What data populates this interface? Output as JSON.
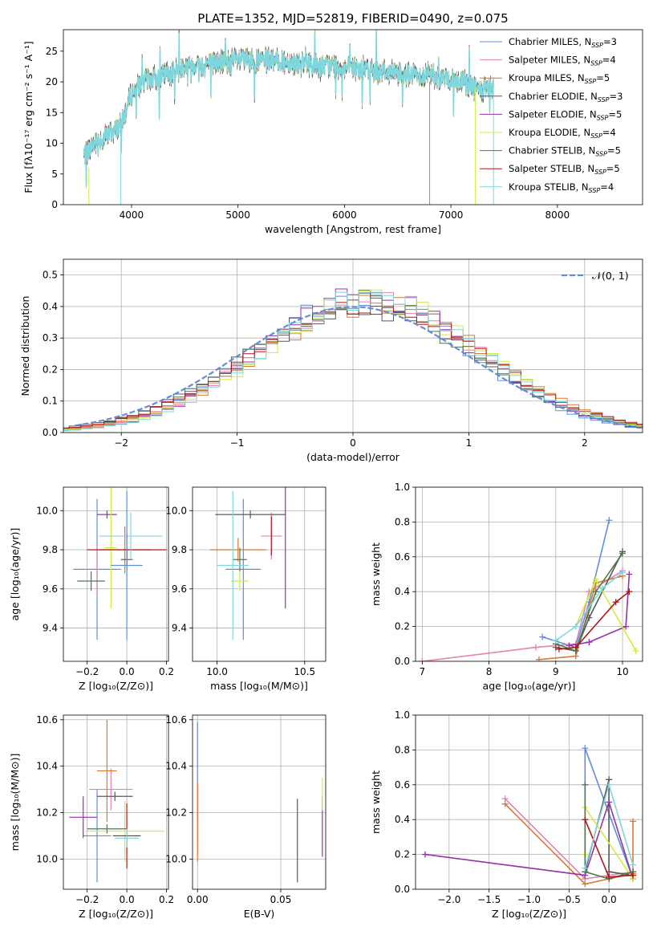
{
  "chart_data": [
    {
      "id": "spectrum",
      "type": "line",
      "title": "PLATE=1352, MJD=52819, FIBERID=0490, z=0.075",
      "xlabel": "wavelength [Angstrom, rest frame]",
      "ylabel": "Flux [fλ10⁻¹⁷ erg cm⁻² s⁻¹ A⁻¹]",
      "xlim": [
        3360,
        8800
      ],
      "ylim": [
        0,
        28.5
      ],
      "xticks": [
        4000,
        5000,
        6000,
        7000,
        8000
      ],
      "yticks": [
        0,
        5,
        10,
        15,
        20,
        25
      ],
      "continuum": [
        [
          3550,
          8
        ],
        [
          3650,
          10
        ],
        [
          3750,
          11
        ],
        [
          3900,
          13
        ],
        [
          4000,
          18
        ],
        [
          4100,
          20
        ],
        [
          4300,
          21
        ],
        [
          4500,
          22.5
        ],
        [
          4700,
          23
        ],
        [
          5000,
          23.5
        ],
        [
          5300,
          23.5
        ],
        [
          5600,
          23
        ],
        [
          5900,
          22.5
        ],
        [
          6200,
          22
        ],
        [
          6500,
          21.5
        ],
        [
          6800,
          21
        ],
        [
          7100,
          20
        ],
        [
          7300,
          18.5
        ],
        [
          7400,
          19
        ]
      ],
      "legend": [
        "Chabrier MILES, N_SSP=3",
        "Salpeter MILES, N_SSP=4",
        "Kroupa MILES, N_SSP=5",
        "Chabrier ELODIE, N_SSP=3",
        "Salpeter ELODIE, N_SSP=5",
        "Kroupa ELODIE, N_SSP=4",
        "Chabrier STELIB, N_SSP=5",
        "Salpeter STELIB, N_SSP=5",
        "Kroupa STELIB, N_SSP=4"
      ],
      "legend_labels": [
        {
          "pre": "Chabrier MILES, N",
          "sub": "SSP",
          "post": "=3"
        },
        {
          "pre": "Salpeter MILES, N",
          "sub": "SSP",
          "post": "=4"
        },
        {
          "pre": "Kroupa MILES, N",
          "sub": "SSP",
          "post": "=5"
        },
        {
          "pre": "Chabrier ELODIE, N",
          "sub": "SSP",
          "post": "=3"
        },
        {
          "pre": "Salpeter ELODIE, N",
          "sub": "SSP",
          "post": "=5"
        },
        {
          "pre": "Kroupa ELODIE, N",
          "sub": "SSP",
          "post": "=4"
        },
        {
          "pre": "Chabrier STELIB, N",
          "sub": "SSP",
          "post": "=5"
        },
        {
          "pre": "Salpeter STELIB, N",
          "sub": "SSP",
          "post": "=5"
        },
        {
          "pre": "Kroupa STELIB, N",
          "sub": "SSP",
          "post": "=4"
        }
      ],
      "legend_placement": "top-right",
      "grid": false
    },
    {
      "id": "residuals",
      "type": "line",
      "xlabel": "(data-model)/error",
      "ylabel": "Normed distribution",
      "xlim": [
        -2.5,
        2.5
      ],
      "ylim": [
        0,
        0.55
      ],
      "xticks": [
        -2,
        -1,
        0,
        1,
        2
      ],
      "yticks": [
        0.0,
        0.1,
        0.2,
        0.3,
        0.4,
        0.5
      ],
      "reference": {
        "name": "𝒩(0, 1)",
        "mean": 0,
        "sigma": 1
      },
      "bin_width": 0.1,
      "grid": true,
      "legend_placement": "top-right"
    },
    {
      "id": "age-vs-Z",
      "type": "scatter",
      "xlabel": "Z [log₁₀(Z/Z⊙)]",
      "ylabel": "age  [log₁₀(age/yr)]",
      "xlim": [
        -0.32,
        0.21
      ],
      "ylim": [
        9.23,
        10.12
      ],
      "xticks": [
        -0.2,
        0.0,
        0.2
      ],
      "yticks": [
        9.4,
        9.6,
        9.8,
        10.0
      ],
      "grid": true,
      "errorbars": [
        {
          "x": -0.15,
          "y": 9.7,
          "xerr": 0.12,
          "yerr": 0.36
        },
        {
          "x": -0.15,
          "y": 9.7,
          "xerr": 0.0,
          "yerr": 0.12
        },
        {
          "x": -0.01,
          "y": 9.8,
          "xerr": 0.13,
          "yerr": 0.12
        },
        {
          "x": 0.0,
          "y": 9.75,
          "xerr": 0.03,
          "yerr": 0.06
        },
        {
          "x": -0.1,
          "y": 9.98,
          "xerr": 0.05,
          "yerr": 0.02
        },
        {
          "x": -0.08,
          "y": 9.81,
          "xerr": 0.03,
          "yerr": 0.31
        },
        {
          "x": -0.18,
          "y": 9.64,
          "xerr": 0.07,
          "yerr": 0.05
        },
        {
          "x": 0.0,
          "y": 9.8,
          "xerr": 0.2,
          "yerr": 0.08
        },
        {
          "x": 0.02,
          "y": 9.87,
          "xerr": 0.16,
          "yerr": 0.12
        },
        {
          "x": 0.0,
          "y": 9.72,
          "xerr": 0.08,
          "yerr": 0.38
        }
      ]
    },
    {
      "id": "age-vs-mass",
      "type": "scatter",
      "xlabel": "mass [log₁₀(M/M⊙)]",
      "ylabel": "",
      "xlim": [
        9.86,
        10.62
      ],
      "ylim": [
        9.23,
        10.12
      ],
      "xticks": [
        10.0,
        10.5
      ],
      "yticks": [
        9.4,
        9.6,
        9.8,
        10.0
      ],
      "grid": true,
      "errorbars": [
        {
          "x": 10.15,
          "y": 9.7,
          "xerr": 0.1,
          "yerr": 0.36
        },
        {
          "x": 10.31,
          "y": 9.87,
          "xerr": 0.06,
          "yerr": 0.12
        },
        {
          "x": 10.12,
          "y": 9.8,
          "xerr": 0.16,
          "yerr": 0.06
        },
        {
          "x": 10.19,
          "y": 9.98,
          "xerr": 0.2,
          "yerr": 0.02
        },
        {
          "x": 10.39,
          "y": 9.81,
          "xerr": 0.0,
          "yerr": 0.31
        },
        {
          "x": 10.13,
          "y": 9.64,
          "xerr": 0.05,
          "yerr": 0.05
        },
        {
          "x": 10.13,
          "y": 9.75,
          "xerr": 0.04,
          "yerr": 0.06
        },
        {
          "x": 10.31,
          "y": 9.87,
          "xerr": 0.0,
          "yerr": 0.1
        },
        {
          "x": 10.09,
          "y": 9.72,
          "xerr": 0.09,
          "yerr": 0.38
        }
      ]
    },
    {
      "id": "weight-vs-age",
      "type": "line",
      "xlabel": "age  [log₁₀(age/yr)]",
      "ylabel": "mass weight",
      "xlim": [
        6.9,
        10.3
      ],
      "ylim": [
        0,
        1.0
      ],
      "xticks": [
        7,
        8,
        9,
        10
      ],
      "yticks": [
        0.0,
        0.2,
        0.4,
        0.6,
        0.8,
        1.0
      ],
      "grid": true,
      "series_lines": [
        {
          "color": "#5f8fdc",
          "points": [
            [
              8.8,
              0.14
            ],
            [
              9.3,
              0.08
            ],
            [
              9.5,
              0.34
            ],
            [
              9.8,
              0.81
            ]
          ]
        },
        {
          "color": "#e581b4",
          "points": [
            [
              7.0,
              0.0
            ],
            [
              8.7,
              0.08
            ],
            [
              9.3,
              0.1
            ],
            [
              9.5,
              0.4
            ],
            [
              10.0,
              0.52
            ]
          ]
        },
        {
          "color": "#e0772c",
          "points": [
            [
              8.75,
              0.01
            ],
            [
              9.3,
              0.03
            ],
            [
              9.6,
              0.45
            ],
            [
              10.0,
              0.49
            ]
          ]
        },
        {
          "color": "#585858",
          "points": [
            [
              9.0,
              0.08
            ],
            [
              9.3,
              0.06
            ],
            [
              9.5,
              0.25
            ],
            [
              10.0,
              0.63
            ]
          ]
        },
        {
          "color": "#9433a8",
          "points": [
            [
              9.2,
              0.09
            ],
            [
              9.5,
              0.11
            ],
            [
              10.05,
              0.2
            ],
            [
              10.1,
              0.5
            ]
          ]
        },
        {
          "color": "#d4ea3e",
          "points": [
            [
              9.3,
              0.2
            ],
            [
              9.6,
              0.47
            ],
            [
              10.2,
              0.06
            ]
          ]
        },
        {
          "color": "#4f7a4f",
          "points": [
            [
              9.0,
              0.1
            ],
            [
              9.3,
              0.06
            ],
            [
              9.6,
              0.4
            ],
            [
              10.0,
              0.62
            ]
          ]
        },
        {
          "color": "#b01818",
          "points": [
            [
              9.05,
              0.07
            ],
            [
              9.3,
              0.08
            ],
            [
              9.9,
              0.34
            ],
            [
              10.1,
              0.4
            ]
          ]
        },
        {
          "color": "#7ed7dc",
          "points": [
            [
              9.0,
              0.12
            ],
            [
              9.3,
              0.2
            ],
            [
              9.7,
              0.42
            ],
            [
              10.0,
              0.51
            ]
          ]
        }
      ]
    },
    {
      "id": "mass-vs-Z",
      "type": "scatter",
      "xlabel": "Z [log₁₀(Z/Z⊙)]",
      "ylabel": "mass [log₁₀(M/M⊙)]",
      "xlim": [
        -0.32,
        0.21
      ],
      "ylim": [
        9.87,
        10.62
      ],
      "xticks": [
        -0.2,
        0.0,
        0.2
      ],
      "yticks": [
        10.0,
        10.2,
        10.4,
        10.6
      ],
      "grid": true,
      "errorbars": [
        {
          "x": -0.15,
          "y": 10.1,
          "xerr": 0.07,
          "yerr": 0.2
        },
        {
          "x": -0.08,
          "y": 10.3,
          "xerr": 0.11,
          "yerr": 0.09
        },
        {
          "x": -0.1,
          "y": 10.38,
          "xerr": 0.05,
          "yerr": 0.22
        },
        {
          "x": -0.06,
          "y": 10.27,
          "xerr": 0.09,
          "yerr": 0.02
        },
        {
          "x": -0.22,
          "y": 10.18,
          "xerr": 0.07,
          "yerr": 0.09
        },
        {
          "x": -0.01,
          "y": 10.12,
          "xerr": 0.2,
          "yerr": 0.13
        },
        {
          "x": -0.1,
          "y": 10.13,
          "xerr": 0.1,
          "yerr": 0.02
        },
        {
          "x": 0.0,
          "y": 10.1,
          "xerr": 0.07,
          "yerr": 0.14
        },
        {
          "x": 0.0,
          "y": 10.09,
          "xerr": 0.06,
          "yerr": 0.04
        }
      ]
    },
    {
      "id": "mass-vs-EBV",
      "type": "scatter",
      "xlabel": "E(B-V)",
      "ylabel": "",
      "xlim": [
        -0.003,
        0.077
      ],
      "ylim": [
        9.87,
        10.62
      ],
      "xticks": [
        0.0,
        0.05
      ],
      "yticks": [
        10.0,
        10.2,
        10.4,
        10.6
      ],
      "grid": true,
      "errorbars": [
        {
          "x": 0.0,
          "y": 10.38,
          "xerr": 0.0,
          "yerr": 0.21
        },
        {
          "x": 0.0,
          "y": 10.2,
          "xerr": 0.0,
          "yerr": 0.12
        },
        {
          "x": 0.0,
          "y": 10.16,
          "xerr": 0.0,
          "yerr": 0.17
        },
        {
          "x": 0.06,
          "y": 10.08,
          "xerr": 0.0,
          "yerr": 0.18
        },
        {
          "x": 0.075,
          "y": 10.14,
          "xerr": 0.0,
          "yerr": 0.13
        },
        {
          "x": 0.075,
          "y": 10.28,
          "xerr": 0.0,
          "yerr": 0.07
        }
      ]
    },
    {
      "id": "weight-vs-Z",
      "type": "line",
      "xlabel": "Z [log₁₀(Z/Z⊙)]",
      "ylabel": "mass weight",
      "xlim": [
        -2.42,
        0.42
      ],
      "ylim": [
        0,
        1.0
      ],
      "xticks": [
        -2.0,
        -1.5,
        -1.0,
        -0.5,
        0.0
      ],
      "yticks": [
        0.0,
        0.2,
        0.4,
        0.6,
        0.8,
        1.0
      ],
      "grid": true,
      "series_lines": [
        {
          "color": "#5f8fdc",
          "points": [
            [
              -0.3,
              0.06
            ],
            [
              -0.3,
              0.81
            ],
            [
              0.3,
              0.06
            ]
          ]
        },
        {
          "color": "#e581b4",
          "points": [
            [
              -1.3,
              0.52
            ],
            [
              -0.3,
              0.06
            ],
            [
              0.3,
              0.1
            ]
          ]
        },
        {
          "color": "#e0772c",
          "points": [
            [
              -1.3,
              0.49
            ],
            [
              -0.3,
              0.03
            ],
            [
              0.3,
              0.09
            ],
            [
              0.3,
              0.39
            ]
          ]
        },
        {
          "color": "#585858",
          "points": [
            [
              -0.3,
              0.1
            ],
            [
              0.0,
              0.63
            ],
            [
              0.0,
              0.1
            ],
            [
              0.3,
              0.08
            ]
          ]
        },
        {
          "color": "#9433a8",
          "points": [
            [
              -2.3,
              0.2
            ],
            [
              -0.3,
              0.08
            ],
            [
              0.0,
              0.5
            ],
            [
              0.3,
              0.06
            ]
          ]
        },
        {
          "color": "#d4ea3e",
          "points": [
            [
              -0.3,
              0.2
            ],
            [
              -0.3,
              0.47
            ],
            [
              0.3,
              0.06
            ]
          ]
        },
        {
          "color": "#4f7a4f",
          "points": [
            [
              -0.3,
              0.6
            ],
            [
              -0.3,
              0.1
            ],
            [
              0.0,
              0.06
            ],
            [
              0.3,
              0.1
            ]
          ]
        },
        {
          "color": "#b01818",
          "points": [
            [
              -0.3,
              0.4
            ],
            [
              0.0,
              0.07
            ],
            [
              0.3,
              0.08
            ]
          ]
        },
        {
          "color": "#7ed7dc",
          "points": [
            [
              -0.3,
              0.12
            ],
            [
              0.0,
              0.6
            ],
            [
              0.3,
              0.14
            ]
          ]
        }
      ]
    }
  ],
  "colors": [
    "#5f8fdc",
    "#e581b4",
    "#e0772c",
    "#585858",
    "#9433a8",
    "#d4ea3e",
    "#4f7a4f",
    "#b01818",
    "#7ed7dc"
  ]
}
